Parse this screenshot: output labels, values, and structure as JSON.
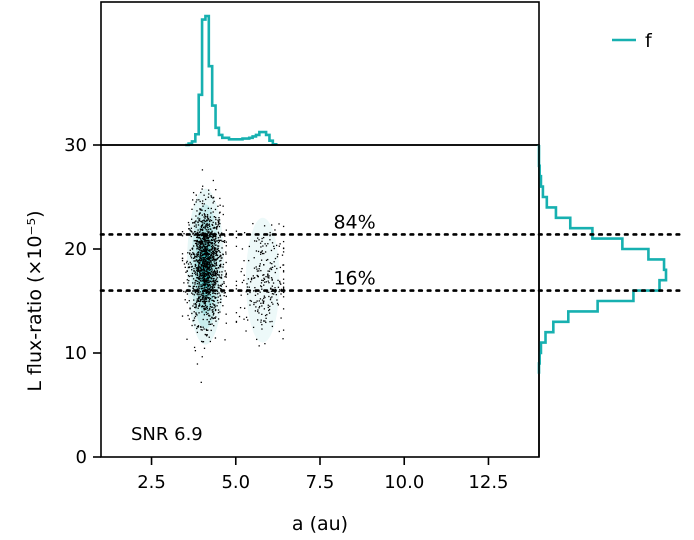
{
  "chart_data": {
    "type": "scatter",
    "subtype": "corner-plot-with-marginal-histograms",
    "xlabel": "a (au)",
    "ylabel": "L flux-ratio (×10⁻⁵)",
    "xlim": [
      1.0,
      14.0
    ],
    "ylim": [
      0,
      30
    ],
    "xticks": [
      2.5,
      5.0,
      7.5,
      10.0,
      12.5
    ],
    "xtick_labels": [
      "2.5",
      "5.0",
      "7.5",
      "10.0",
      "12.5"
    ],
    "yticks": [
      0,
      10,
      20,
      30
    ],
    "ytick_labels": [
      "0",
      "10",
      "20",
      "30"
    ],
    "grid": false,
    "legend": {
      "position": "top-right",
      "entries": [
        {
          "label": "f",
          "color": "#17b0b0"
        }
      ]
    },
    "annotation": "SNR 6.9",
    "percentile_lines": [
      {
        "label": "84%",
        "y": 21.4
      },
      {
        "label": "16%",
        "y": 16.0
      }
    ],
    "series": [
      {
        "name": "f",
        "color": "#17b0b0",
        "scatter_summary": {
          "main_cluster": {
            "x_center": 4.1,
            "x_spread": 0.25,
            "y_center": 18.5,
            "y_spread": 2.8,
            "x_min": 3.4,
            "x_max": 4.7
          },
          "secondary_cluster": {
            "x_center": 5.8,
            "x_spread": 0.35,
            "y_center": 17.0,
            "y_spread": 2.6,
            "x_min": 5.0,
            "x_max": 6.4
          }
        },
        "density_contour_center": [
          4.1,
          18.3
        ]
      }
    ],
    "x_marginal_histogram": {
      "bin_edges": [
        3.5,
        3.6,
        3.7,
        3.8,
        3.9,
        4.0,
        4.1,
        4.2,
        4.3,
        4.4,
        4.5,
        4.6,
        4.7,
        4.8,
        4.9,
        5.0,
        5.1,
        5.2,
        5.3,
        5.4,
        5.5,
        5.6,
        5.7,
        5.8,
        5.9,
        6.0,
        6.1,
        6.2
      ],
      "counts": [
        0,
        2,
        5,
        15,
        70,
        175,
        180,
        110,
        55,
        24,
        14,
        10,
        10,
        8,
        8,
        8,
        8,
        9,
        9,
        10,
        12,
        14,
        18,
        18,
        14,
        6,
        1
      ]
    },
    "y_marginal_histogram": {
      "bin_edges": [
        8,
        9,
        10,
        11,
        12,
        13,
        14,
        15,
        16,
        17,
        18,
        19,
        20,
        21,
        22,
        23,
        24,
        25,
        26,
        27,
        28,
        29,
        30
      ],
      "counts": [
        0,
        1,
        3,
        10,
        22,
        45,
        90,
        145,
        185,
        195,
        192,
        168,
        128,
        82,
        48,
        26,
        12,
        6,
        3,
        1,
        0,
        0
      ]
    }
  }
}
